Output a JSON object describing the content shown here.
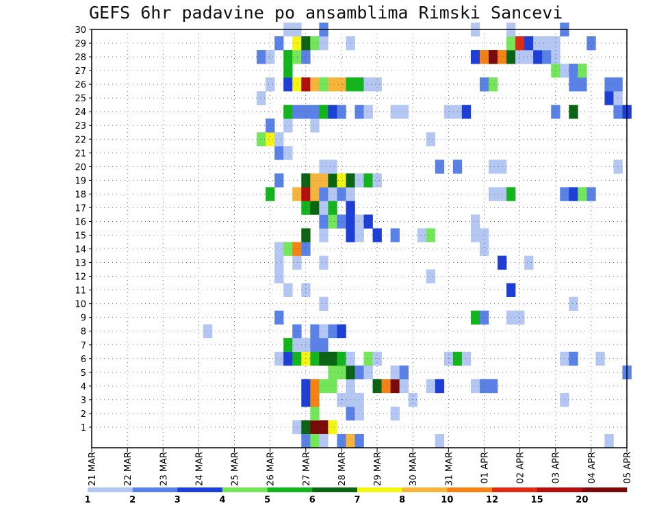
{
  "title": "GEFS 6hr padavine po ansamblima Rimski Sancevi",
  "chart_data": {
    "type": "heatmap",
    "title": "GEFS 6hr padavine po ansamblima Rimski Sancevi",
    "x_tick_labels": [
      "21 MAR",
      "22 MAR",
      "23 MAR",
      "24 MAR",
      "25 MAR",
      "26 MAR",
      "27 MAR",
      "28 MAR",
      "29 MAR",
      "30 MAR",
      "31 MAR",
      "01 APR",
      "02 APR",
      "03 APR",
      "04 APR",
      "05 APR"
    ],
    "xlim": [
      0,
      60
    ],
    "x_units": "6-hour steps from 21 MAR 00Z",
    "y_tick_labels": [
      "1",
      "2",
      "3",
      "4",
      "5",
      "6",
      "7",
      "8",
      "9",
      "10",
      "11",
      "12",
      "13",
      "14",
      "15",
      "16",
      "17",
      "18",
      "19",
      "20",
      "21",
      "22",
      "23",
      "24",
      "25",
      "26",
      "27",
      "28",
      "29",
      "30"
    ],
    "ylim": [
      0,
      30
    ],
    "grid": true,
    "colorbar": {
      "labels": [
        "1",
        "2",
        "3",
        "4",
        "5",
        "6",
        "7",
        "8",
        "10",
        "12",
        "15",
        "20"
      ],
      "colors": [
        "#b3c7f2",
        "#5a82e6",
        "#1e3fd6",
        "#73e65a",
        "#14b41e",
        "#0a6414",
        "#f5f514",
        "#f5b43c",
        "#f58214",
        "#dc2d14",
        "#b40f0f",
        "#780a0a"
      ]
    },
    "levels": {
      "1": "#b3c7f2",
      "2": "#5a82e6",
      "3": "#1e3fd6",
      "4": "#73e65a",
      "5": "#14b41e",
      "6": "#0a6414",
      "7": "#f5f514",
      "8": "#f5b43c",
      "10": "#f58214",
      "12": "#dc2d14",
      "15": "#b40f0f",
      "20": "#780a0a"
    },
    "cells": [
      {
        "member": 1,
        "x": 23,
        "v": 1
      },
      {
        "member": 1,
        "x": 24,
        "v": 6
      },
      {
        "member": 1,
        "x": 25,
        "v": 20
      },
      {
        "member": 1,
        "x": 26,
        "v": 20
      },
      {
        "member": 1,
        "x": 27,
        "v": 7
      },
      {
        "member": 2,
        "x": 25,
        "v": 4
      },
      {
        "member": 2,
        "x": 29,
        "v": 2
      },
      {
        "member": 2,
        "x": 30,
        "v": 1
      },
      {
        "member": 2,
        "x": 34,
        "v": 1
      },
      {
        "member": 3,
        "x": 24,
        "v": 3
      },
      {
        "member": 3,
        "x": 25,
        "v": 10
      },
      {
        "member": 3,
        "x": 28,
        "v": 1
      },
      {
        "member": 3,
        "x": 29,
        "v": 1
      },
      {
        "member": 3,
        "x": 30,
        "v": 1
      },
      {
        "member": 3,
        "x": 36,
        "v": 1
      },
      {
        "member": 3,
        "x": 53,
        "v": 1
      },
      {
        "member": 4,
        "x": 24,
        "v": 3
      },
      {
        "member": 4,
        "x": 25,
        "v": 10
      },
      {
        "member": 4,
        "x": 26,
        "v": 4
      },
      {
        "member": 4,
        "x": 27,
        "v": 4
      },
      {
        "member": 4,
        "x": 29,
        "v": 1
      },
      {
        "member": 4,
        "x": 32,
        "v": 6
      },
      {
        "member": 4,
        "x": 33,
        "v": 10
      },
      {
        "member": 4,
        "x": 34,
        "v": 20
      },
      {
        "member": 4,
        "x": 35,
        "v": 1
      },
      {
        "member": 4,
        "x": 38,
        "v": 1
      },
      {
        "member": 4,
        "x": 39,
        "v": 3
      },
      {
        "member": 4,
        "x": 43,
        "v": 1
      },
      {
        "member": 4,
        "x": 44,
        "v": 2
      },
      {
        "member": 4,
        "x": 45,
        "v": 2
      },
      {
        "member": 5,
        "x": 27,
        "v": 4
      },
      {
        "member": 5,
        "x": 28,
        "v": 4
      },
      {
        "member": 5,
        "x": 29,
        "v": 6
      },
      {
        "member": 5,
        "x": 30,
        "v": 2
      },
      {
        "member": 5,
        "x": 31,
        "v": 1
      },
      {
        "member": 5,
        "x": 34,
        "v": 1
      },
      {
        "member": 5,
        "x": 35,
        "v": 2
      },
      {
        "member": 5,
        "x": 60,
        "v": 2
      },
      {
        "member": 6,
        "x": 21,
        "v": 1
      },
      {
        "member": 6,
        "x": 22,
        "v": 3
      },
      {
        "member": 6,
        "x": 23,
        "v": 5
      },
      {
        "member": 6,
        "x": 24,
        "v": 7
      },
      {
        "member": 6,
        "x": 25,
        "v": 5
      },
      {
        "member": 6,
        "x": 26,
        "v": 6
      },
      {
        "member": 6,
        "x": 27,
        "v": 6
      },
      {
        "member": 6,
        "x": 28,
        "v": 5
      },
      {
        "member": 6,
        "x": 29,
        "v": 1
      },
      {
        "member": 6,
        "x": 31,
        "v": 4
      },
      {
        "member": 6,
        "x": 32,
        "v": 1
      },
      {
        "member": 6,
        "x": 40,
        "v": 1
      },
      {
        "member": 6,
        "x": 41,
        "v": 5
      },
      {
        "member": 6,
        "x": 42,
        "v": 1
      },
      {
        "member": 6,
        "x": 53,
        "v": 1
      },
      {
        "member": 6,
        "x": 54,
        "v": 2
      },
      {
        "member": 6,
        "x": 57,
        "v": 1
      },
      {
        "member": 7,
        "x": 22,
        "v": 5
      },
      {
        "member": 7,
        "x": 23,
        "v": 1
      },
      {
        "member": 7,
        "x": 24,
        "v": 1
      },
      {
        "member": 7,
        "x": 25,
        "v": 2
      },
      {
        "member": 7,
        "x": 26,
        "v": 2
      },
      {
        "member": 8,
        "x": 13,
        "v": 1
      },
      {
        "member": 8,
        "x": 23,
        "v": 2
      },
      {
        "member": 8,
        "x": 25,
        "v": 2
      },
      {
        "member": 8,
        "x": 26,
        "v": 1
      },
      {
        "member": 8,
        "x": 27,
        "v": 2
      },
      {
        "member": 8,
        "x": 28,
        "v": 3
      },
      {
        "member": 9,
        "x": 21,
        "v": 2
      },
      {
        "member": 9,
        "x": 43,
        "v": 5
      },
      {
        "member": 9,
        "x": 44,
        "v": 2
      },
      {
        "member": 9,
        "x": 47,
        "v": 1
      },
      {
        "member": 9,
        "x": 48,
        "v": 1
      },
      {
        "member": 10,
        "x": 26,
        "v": 1
      },
      {
        "member": 10,
        "x": 54,
        "v": 1
      },
      {
        "member": 11,
        "x": 22,
        "v": 1
      },
      {
        "member": 11,
        "x": 24,
        "v": 1
      },
      {
        "member": 11,
        "x": 47,
        "v": 3
      },
      {
        "member": 12,
        "x": 21,
        "v": 1
      },
      {
        "member": 12,
        "x": 38,
        "v": 1
      },
      {
        "member": 13,
        "x": 21,
        "v": 1
      },
      {
        "member": 13,
        "x": 23,
        "v": 1
      },
      {
        "member": 13,
        "x": 26,
        "v": 1
      },
      {
        "member": 13,
        "x": 46,
        "v": 3
      },
      {
        "member": 13,
        "x": 49,
        "v": 1
      },
      {
        "member": 14,
        "x": 21,
        "v": 1
      },
      {
        "member": 14,
        "x": 22,
        "v": 4
      },
      {
        "member": 14,
        "x": 23,
        "v": 10
      },
      {
        "member": 14,
        "x": 24,
        "v": 2
      },
      {
        "member": 14,
        "x": 44,
        "v": 1
      },
      {
        "member": 15,
        "x": 24,
        "v": 6
      },
      {
        "member": 15,
        "x": 26,
        "v": 1
      },
      {
        "member": 15,
        "x": 29,
        "v": 3
      },
      {
        "member": 15,
        "x": 30,
        "v": 1
      },
      {
        "member": 15,
        "x": 32,
        "v": 3
      },
      {
        "member": 15,
        "x": 34,
        "v": 2
      },
      {
        "member": 15,
        "x": 37,
        "v": 1
      },
      {
        "member": 15,
        "x": 38,
        "v": 4
      },
      {
        "member": 15,
        "x": 43,
        "v": 1
      },
      {
        "member": 15,
        "x": 44,
        "v": 1
      },
      {
        "member": 16,
        "x": 26,
        "v": 2
      },
      {
        "member": 16,
        "x": 27,
        "v": 4
      },
      {
        "member": 16,
        "x": 28,
        "v": 2
      },
      {
        "member": 16,
        "x": 29,
        "v": 3
      },
      {
        "member": 16,
        "x": 30,
        "v": 1
      },
      {
        "member": 16,
        "x": 31,
        "v": 3
      },
      {
        "member": 16,
        "x": 43,
        "v": 1
      },
      {
        "member": 17,
        "x": 24,
        "v": 5
      },
      {
        "member": 17,
        "x": 25,
        "v": 6
      },
      {
        "member": 17,
        "x": 26,
        "v": 1
      },
      {
        "member": 17,
        "x": 27,
        "v": 5
      },
      {
        "member": 17,
        "x": 29,
        "v": 3
      },
      {
        "member": 18,
        "x": 20,
        "v": 5
      },
      {
        "member": 18,
        "x": 23,
        "v": 8
      },
      {
        "member": 18,
        "x": 24,
        "v": 15
      },
      {
        "member": 18,
        "x": 25,
        "v": 8
      },
      {
        "member": 18,
        "x": 26,
        "v": 2
      },
      {
        "member": 18,
        "x": 27,
        "v": 1
      },
      {
        "member": 18,
        "x": 28,
        "v": 2
      },
      {
        "member": 18,
        "x": 29,
        "v": 1
      },
      {
        "member": 18,
        "x": 45,
        "v": 1
      },
      {
        "member": 18,
        "x": 46,
        "v": 1
      },
      {
        "member": 18,
        "x": 47,
        "v": 5
      },
      {
        "member": 18,
        "x": 53,
        "v": 2
      },
      {
        "member": 18,
        "x": 54,
        "v": 3
      },
      {
        "member": 18,
        "x": 55,
        "v": 4
      },
      {
        "member": 18,
        "x": 56,
        "v": 2
      },
      {
        "member": 19,
        "x": 21,
        "v": 2
      },
      {
        "member": 19,
        "x": 24,
        "v": 6
      },
      {
        "member": 19,
        "x": 25,
        "v": 8
      },
      {
        "member": 19,
        "x": 26,
        "v": 8
      },
      {
        "member": 19,
        "x": 27,
        "v": 6
      },
      {
        "member": 19,
        "x": 28,
        "v": 7
      },
      {
        "member": 19,
        "x": 29,
        "v": 6
      },
      {
        "member": 19,
        "x": 30,
        "v": 1
      },
      {
        "member": 19,
        "x": 31,
        "v": 5
      },
      {
        "member": 19,
        "x": 32,
        "v": 1
      },
      {
        "member": 20,
        "x": 26,
        "v": 1
      },
      {
        "member": 20,
        "x": 27,
        "v": 1
      },
      {
        "member": 20,
        "x": 39,
        "v": 2
      },
      {
        "member": 20,
        "x": 41,
        "v": 2
      },
      {
        "member": 20,
        "x": 45,
        "v": 1
      },
      {
        "member": 20,
        "x": 46,
        "v": 1
      },
      {
        "member": 20,
        "x": 59,
        "v": 1
      },
      {
        "member": 21,
        "x": 21,
        "v": 2
      },
      {
        "member": 21,
        "x": 22,
        "v": 1
      },
      {
        "member": 22,
        "x": 19,
        "v": 4
      },
      {
        "member": 22,
        "x": 20,
        "v": 7
      },
      {
        "member": 22,
        "x": 21,
        "v": 1
      },
      {
        "member": 22,
        "x": 38,
        "v": 1
      },
      {
        "member": 23,
        "x": 20,
        "v": 2
      },
      {
        "member": 23,
        "x": 22,
        "v": 1
      },
      {
        "member": 23,
        "x": 25,
        "v": 1
      },
      {
        "member": 24,
        "x": 22,
        "v": 5
      },
      {
        "member": 24,
        "x": 23,
        "v": 2
      },
      {
        "member": 24,
        "x": 24,
        "v": 2
      },
      {
        "member": 24,
        "x": 25,
        "v": 2
      },
      {
        "member": 24,
        "x": 26,
        "v": 5
      },
      {
        "member": 24,
        "x": 27,
        "v": 3
      },
      {
        "member": 24,
        "x": 28,
        "v": 2
      },
      {
        "member": 24,
        "x": 30,
        "v": 2
      },
      {
        "member": 24,
        "x": 31,
        "v": 1
      },
      {
        "member": 24,
        "x": 34,
        "v": 1
      },
      {
        "member": 24,
        "x": 35,
        "v": 1
      },
      {
        "member": 24,
        "x": 40,
        "v": 1
      },
      {
        "member": 24,
        "x": 41,
        "v": 1
      },
      {
        "member": 24,
        "x": 42,
        "v": 3
      },
      {
        "member": 24,
        "x": 52,
        "v": 2
      },
      {
        "member": 24,
        "x": 54,
        "v": 6
      },
      {
        "member": 24,
        "x": 59,
        "v": 2
      },
      {
        "member": 24,
        "x": 60,
        "v": 3
      },
      {
        "member": 25,
        "x": 19,
        "v": 1
      },
      {
        "member": 25,
        "x": 58,
        "v": 3
      },
      {
        "member": 25,
        "x": 59,
        "v": 1
      },
      {
        "member": 26,
        "x": 20,
        "v": 1
      },
      {
        "member": 26,
        "x": 22,
        "v": 3
      },
      {
        "member": 26,
        "x": 23,
        "v": 7
      },
      {
        "member": 26,
        "x": 24,
        "v": 15
      },
      {
        "member": 26,
        "x": 25,
        "v": 8
      },
      {
        "member": 26,
        "x": 26,
        "v": 4
      },
      {
        "member": 26,
        "x": 27,
        "v": 8
      },
      {
        "member": 26,
        "x": 28,
        "v": 8
      },
      {
        "member": 26,
        "x": 29,
        "v": 5
      },
      {
        "member": 26,
        "x": 30,
        "v": 5
      },
      {
        "member": 26,
        "x": 31,
        "v": 1
      },
      {
        "member": 26,
        "x": 32,
        "v": 1
      },
      {
        "member": 26,
        "x": 44,
        "v": 2
      },
      {
        "member": 26,
        "x": 45,
        "v": 4
      },
      {
        "member": 26,
        "x": 54,
        "v": 2
      },
      {
        "member": 26,
        "x": 55,
        "v": 2
      },
      {
        "member": 26,
        "x": 58,
        "v": 2
      },
      {
        "member": 26,
        "x": 59,
        "v": 2
      },
      {
        "member": 27,
        "x": 22,
        "v": 5
      },
      {
        "member": 27,
        "x": 52,
        "v": 4
      },
      {
        "member": 27,
        "x": 53,
        "v": 1
      },
      {
        "member": 27,
        "x": 54,
        "v": 2
      },
      {
        "member": 27,
        "x": 55,
        "v": 4
      },
      {
        "member": 28,
        "x": 19,
        "v": 2
      },
      {
        "member": 28,
        "x": 20,
        "v": 1
      },
      {
        "member": 28,
        "x": 22,
        "v": 5
      },
      {
        "member": 28,
        "x": 23,
        "v": 4
      },
      {
        "member": 28,
        "x": 24,
        "v": 2
      },
      {
        "member": 28,
        "x": 43,
        "v": 3
      },
      {
        "member": 28,
        "x": 44,
        "v": 10
      },
      {
        "member": 28,
        "x": 45,
        "v": 20
      },
      {
        "member": 28,
        "x": 46,
        "v": 10
      },
      {
        "member": 28,
        "x": 47,
        "v": 6
      },
      {
        "member": 28,
        "x": 48,
        "v": 1
      },
      {
        "member": 28,
        "x": 49,
        "v": 1
      },
      {
        "member": 28,
        "x": 50,
        "v": 3
      },
      {
        "member": 28,
        "x": 51,
        "v": 2
      },
      {
        "member": 28,
        "x": 52,
        "v": 1
      },
      {
        "member": 29,
        "x": 21,
        "v": 2
      },
      {
        "member": 29,
        "x": 23,
        "v": 7
      },
      {
        "member": 29,
        "x": 24,
        "v": 6
      },
      {
        "member": 29,
        "x": 25,
        "v": 4
      },
      {
        "member": 29,
        "x": 26,
        "v": 1
      },
      {
        "member": 29,
        "x": 29,
        "v": 1
      },
      {
        "member": 29,
        "x": 47,
        "v": 4
      },
      {
        "member": 29,
        "x": 48,
        "v": 12
      },
      {
        "member": 29,
        "x": 49,
        "v": 3
      },
      {
        "member": 29,
        "x": 50,
        "v": 1
      },
      {
        "member": 29,
        "x": 51,
        "v": 1
      },
      {
        "member": 29,
        "x": 52,
        "v": 1
      },
      {
        "member": 29,
        "x": 56,
        "v": 2
      },
      {
        "member": 30,
        "x": 22,
        "v": 1
      },
      {
        "member": 30,
        "x": 23,
        "v": 1
      },
      {
        "member": 30,
        "x": 26,
        "v": 2
      },
      {
        "member": 30,
        "x": 43,
        "v": 1
      },
      {
        "member": 30,
        "x": 47,
        "v": 1
      },
      {
        "member": 30,
        "x": 53,
        "v": 2
      },
      {
        "member": 0,
        "x": 24,
        "v": 2
      },
      {
        "member": 0,
        "x": 25,
        "v": 4
      },
      {
        "member": 0,
        "x": 26,
        "v": 1
      },
      {
        "member": 0,
        "x": 28,
        "v": 2
      },
      {
        "member": 0,
        "x": 29,
        "v": 8
      },
      {
        "member": 0,
        "x": 30,
        "v": 2
      },
      {
        "member": 0,
        "x": 39,
        "v": 1
      },
      {
        "member": 0,
        "x": 58,
        "v": 1
      }
    ]
  }
}
